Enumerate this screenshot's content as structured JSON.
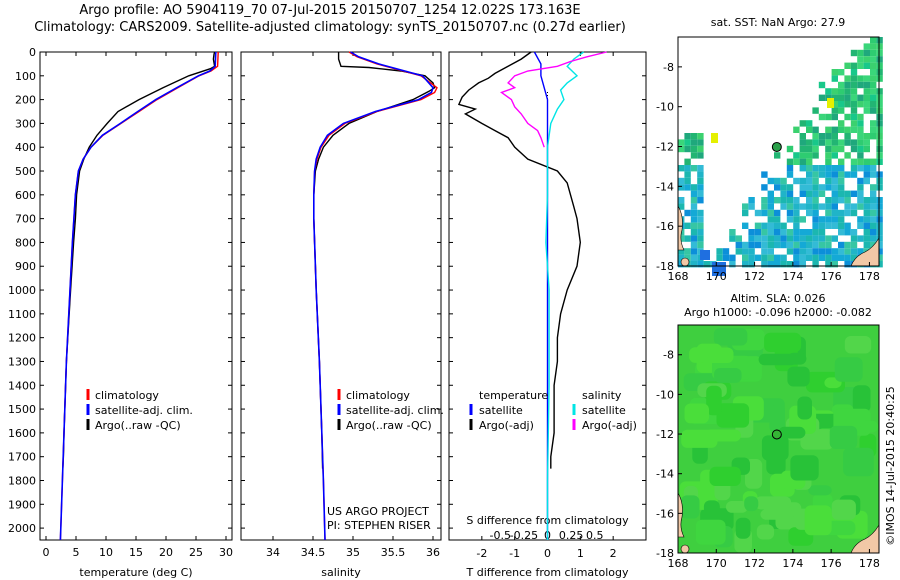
{
  "header": {
    "line1": "Argo profile: AO 5904119_70 07-Jul-2015 20150707_1254 12.022S 173.163E",
    "line2": "Climatology: CARS2009. Satellite-adjusted climatology: synTS_20150707.nc (0.27d earlier)"
  },
  "colors": {
    "climatology": "#ff0000",
    "satellite": "#0000ff",
    "argo": "#000000",
    "salinity_sat": "#00e5e5",
    "salinity_argo": "#ff00ff"
  },
  "depth_axis": {
    "min": 0,
    "max": 2050,
    "ticks": [
      0,
      100,
      200,
      300,
      400,
      500,
      600,
      700,
      800,
      900,
      1000,
      1100,
      1200,
      1300,
      1400,
      1500,
      1600,
      1700,
      1800,
      1900,
      2000
    ]
  },
  "chart_data": [
    {
      "type": "line",
      "xlabel": "temperature (deg C)",
      "xlim": [
        -1,
        31
      ],
      "xticks": [
        0,
        5,
        10,
        15,
        20,
        25,
        30
      ],
      "ylim": [
        2050,
        0
      ],
      "legend": [
        "climatology",
        "satellite-adj. clim.",
        "Argo(..raw -QC)"
      ],
      "series": [
        {
          "name": "climatology",
          "y": [
            0,
            60,
            80,
            100,
            150,
            200,
            250,
            300,
            350,
            400,
            450,
            500,
            600,
            800,
            1000,
            1300,
            1600,
            2050
          ],
          "x": [
            28.7,
            28.6,
            27.5,
            25.5,
            22,
            18.5,
            15.5,
            12.5,
            9.5,
            7.5,
            6.2,
            5.4,
            4.9,
            4.4,
            4.0,
            3.4,
            3.0,
            2.4
          ]
        },
        {
          "name": "satellite-adj. clim.",
          "y": [
            0,
            60,
            80,
            100,
            150,
            200,
            250,
            300,
            350,
            400,
            450,
            500,
            600,
            800,
            1000,
            1300,
            1600,
            2050
          ],
          "x": [
            28.3,
            28.2,
            27.3,
            25.4,
            21.8,
            18.3,
            15.3,
            12.4,
            9.4,
            7.5,
            6.2,
            5.4,
            4.9,
            4.4,
            4.0,
            3.4,
            3.0,
            2.4
          ]
        },
        {
          "name": "Argo(..raw -QC)",
          "y": [
            0,
            10,
            30,
            60,
            70,
            100,
            150,
            200,
            250,
            300,
            350,
            400,
            450,
            500,
            600,
            700,
            800,
            1000,
            1300,
            1600,
            1700,
            1750
          ],
          "x": [
            28.1,
            28.0,
            27.9,
            28.1,
            27.4,
            23.8,
            19.5,
            15.5,
            12.0,
            10.2,
            8.5,
            7.2,
            6.3,
            5.6,
            5.1,
            4.9,
            4.6,
            4.1,
            3.4,
            3.0,
            2.9,
            2.8
          ]
        }
      ]
    },
    {
      "type": "line",
      "xlabel": "salinity",
      "xlim": [
        33.6,
        36.1
      ],
      "xticks": [
        34,
        34.5,
        35,
        35.5,
        36
      ],
      "ylim": [
        2050,
        0
      ],
      "legend": [
        "climatology",
        "satellite-adj. clim.",
        "Argo(..raw -QC)"
      ],
      "annotation": [
        "US ARGO PROJECT",
        "PI: STEPHEN RISER"
      ],
      "series": [
        {
          "name": "climatology",
          "y": [
            0,
            20,
            50,
            100,
            150,
            170,
            200,
            250,
            300,
            350,
            400,
            450,
            500,
            600,
            700,
            800,
            1000,
            1300,
            1600,
            1800,
            2050
          ],
          "x": [
            34.95,
            35.05,
            35.3,
            35.85,
            36.05,
            36.02,
            35.85,
            35.3,
            34.9,
            34.7,
            34.6,
            34.55,
            34.52,
            34.51,
            34.51,
            34.52,
            34.54,
            34.58,
            34.61,
            34.63,
            34.65
          ]
        },
        {
          "name": "satellite-adj. clim.",
          "y": [
            0,
            20,
            50,
            100,
            150,
            170,
            200,
            250,
            300,
            350,
            400,
            450,
            500,
            600,
            700,
            800,
            1000,
            1300,
            1600,
            1800,
            2050
          ],
          "x": [
            34.97,
            35.07,
            35.32,
            35.87,
            36.0,
            35.98,
            35.82,
            35.28,
            34.88,
            34.68,
            34.59,
            34.54,
            34.52,
            34.51,
            34.51,
            34.52,
            34.54,
            34.58,
            34.61,
            34.63,
            34.65
          ]
        },
        {
          "name": "Argo(..raw -QC)",
          "y": [
            0,
            30,
            60,
            65,
            80,
            100,
            130,
            150,
            165,
            200,
            250,
            300,
            350,
            400,
            450,
            500,
            600,
            700,
            800,
            1000,
            1300,
            1600,
            1750
          ],
          "x": [
            34.82,
            34.82,
            34.85,
            35.2,
            35.6,
            35.9,
            36.0,
            36.02,
            35.95,
            35.75,
            35.3,
            34.95,
            34.75,
            34.63,
            34.57,
            34.53,
            34.51,
            34.51,
            34.52,
            34.54,
            34.58,
            34.61,
            34.62
          ]
        }
      ]
    },
    {
      "type": "line",
      "xlabel": "T difference from climatology",
      "xlabel2": "S difference from climatology",
      "xlim": [
        -3,
        3
      ],
      "xticks_T": [
        -2,
        -1,
        0,
        1,
        2
      ],
      "xticks_S": [
        "-0.5",
        "-0.25",
        "0",
        "0.25",
        "0.5"
      ],
      "ylim": [
        2050,
        0
      ],
      "legend_temperature": [
        "temperature",
        "satellite",
        "Argo(-adj)"
      ],
      "legend_salinity": [
        "salinity",
        "satellite",
        "Argo(-adj)"
      ],
      "series": [
        {
          "name": "satellite",
          "y": [
            0,
            50,
            100,
            150,
            200,
            250,
            300,
            400,
            600,
            800,
            1000,
            1400,
            1800,
            2050
          ],
          "x": [
            -0.4,
            -0.2,
            -0.2,
            -0.1,
            0,
            0,
            0,
            0,
            0,
            0,
            0,
            0,
            0,
            0
          ]
        },
        {
          "name": "Argo(-adj)",
          "y": [
            0,
            30,
            60,
            90,
            110,
            130,
            160,
            190,
            220,
            240,
            260,
            300,
            330,
            360,
            400,
            450,
            500,
            550,
            600,
            650,
            700,
            800,
            900,
            1000,
            1100,
            1200,
            1300,
            1400,
            1500,
            1600,
            1700,
            1750
          ],
          "x": [
            -0.5,
            -0.8,
            -1.2,
            -1.6,
            -1.8,
            -2.1,
            -2.4,
            -2.6,
            -2.7,
            -2.2,
            -2.5,
            -2.0,
            -1.6,
            -1.2,
            -1.0,
            -0.6,
            0.3,
            0.6,
            0.7,
            0.8,
            0.9,
            1.0,
            0.9,
            0.6,
            0.4,
            0.3,
            0.3,
            0.2,
            0.2,
            0.2,
            0.1,
            0.1
          ]
        },
        {
          "name": "salinity satellite",
          "y": [
            0,
            30,
            60,
            100,
            130,
            160,
            200,
            240,
            300,
            400,
            600,
            800,
            1000,
            1400,
            1800,
            2050
          ],
          "x": [
            1.1,
            0.8,
            0.6,
            0.9,
            0.6,
            0.4,
            0.5,
            0.3,
            0.1,
            0.0,
            0.0,
            -0.05,
            0.05,
            0.05,
            0.0,
            0.0
          ]
        },
        {
          "name": "salinity Argo(-adj)",
          "y": [
            0,
            20,
            40,
            60,
            80,
            100,
            130,
            150,
            170,
            200,
            230,
            260,
            300,
            330,
            360,
            400
          ],
          "x": [
            1.8,
            1.2,
            0.7,
            0.3,
            -0.6,
            -1.0,
            -1.2,
            -1.0,
            -1.4,
            -1.1,
            -1.0,
            -0.8,
            -0.6,
            -0.3,
            -0.2,
            -0.1
          ]
        }
      ]
    },
    {
      "type": "heatmap",
      "title": "sat. SST: NaN Argo: 27.9",
      "xlim": [
        168,
        178.5
      ],
      "ylim": [
        -18,
        -6.5
      ],
      "xticks": [
        168,
        170,
        172,
        174,
        176,
        178
      ],
      "yticks": [
        -8,
        -10,
        -12,
        -14,
        -16,
        -18
      ],
      "argo_position": {
        "lon": 173.163,
        "lat": -12.022
      }
    },
    {
      "type": "heatmap",
      "title": "Altim. SLA: 0.026",
      "subtitle": "Argo h1000: -0.096 h2000: -0.082",
      "xlim": [
        168,
        178.5
      ],
      "ylim": [
        -18,
        -6.5
      ],
      "xticks": [
        168,
        170,
        172,
        174,
        176,
        178
      ],
      "yticks": [
        -8,
        -10,
        -12,
        -14,
        -16,
        -18
      ],
      "argo_position": {
        "lon": 173.163,
        "lat": -12.022
      }
    }
  ],
  "credit": "©IMOS 14-Jul-2015 20:40:25"
}
